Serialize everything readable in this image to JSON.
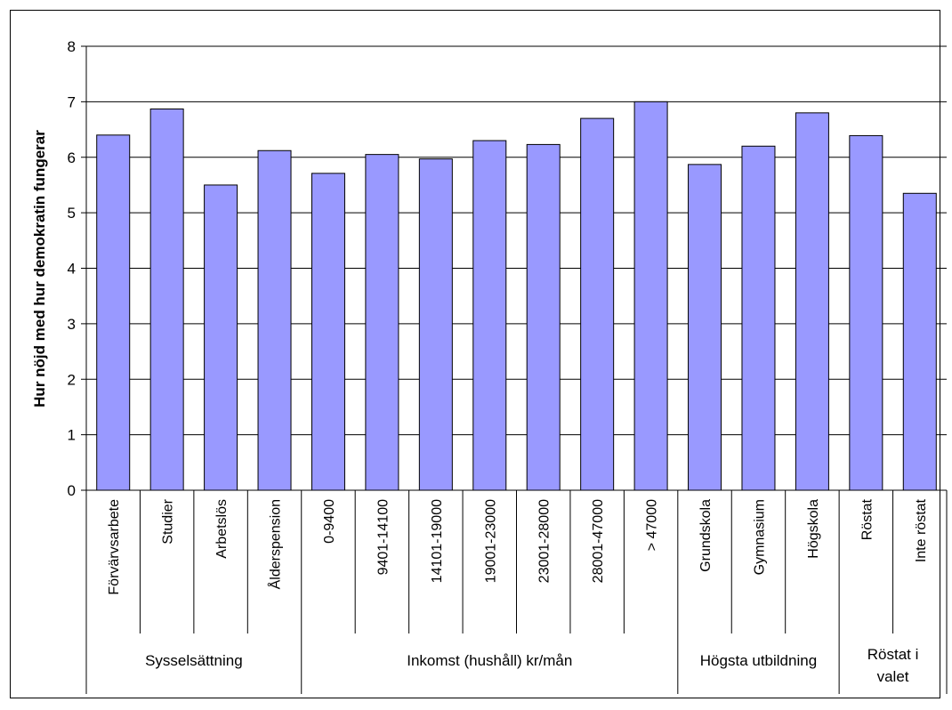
{
  "chart_data": {
    "type": "bar",
    "title": "",
    "ylabel": "Hur nöjd med hur demokratin fungerar",
    "xlabel": "",
    "ylim": [
      0,
      8
    ],
    "yticks": [
      0,
      1,
      2,
      3,
      4,
      5,
      6,
      7,
      8
    ],
    "grid": true,
    "bar_color": "#9999ff",
    "categories": [
      "Förvärvsarbete",
      "Studier",
      "Arbetslös",
      "Ålderspension",
      "0-9400",
      "9401-14100",
      "14101-19000",
      "19001-23000",
      "23001-28000",
      "28001-47000",
      "> 47000",
      "Grundskola",
      "Gymnasium",
      "Högskola",
      "Röstat",
      "Inte röstat"
    ],
    "values": [
      6.4,
      6.87,
      5.5,
      6.12,
      5.71,
      6.05,
      5.97,
      6.3,
      6.23,
      6.7,
      7.0,
      5.87,
      6.2,
      6.8,
      6.39,
      5.35
    ],
    "groups": [
      {
        "label": "Sysselsättning",
        "lines": [
          "Sysselsättning"
        ],
        "start": 0,
        "count": 4
      },
      {
        "label": "Inkomst (hushåll) kr/mån",
        "lines": [
          "Inkomst (hushåll) kr/mån"
        ],
        "start": 4,
        "count": 7
      },
      {
        "label": "Högsta utbildning",
        "lines": [
          "Högsta utbildning"
        ],
        "start": 11,
        "count": 3
      },
      {
        "label": "Röstat i valet",
        "lines": [
          "Röstat i",
          "valet"
        ],
        "start": 14,
        "count": 2
      }
    ]
  }
}
